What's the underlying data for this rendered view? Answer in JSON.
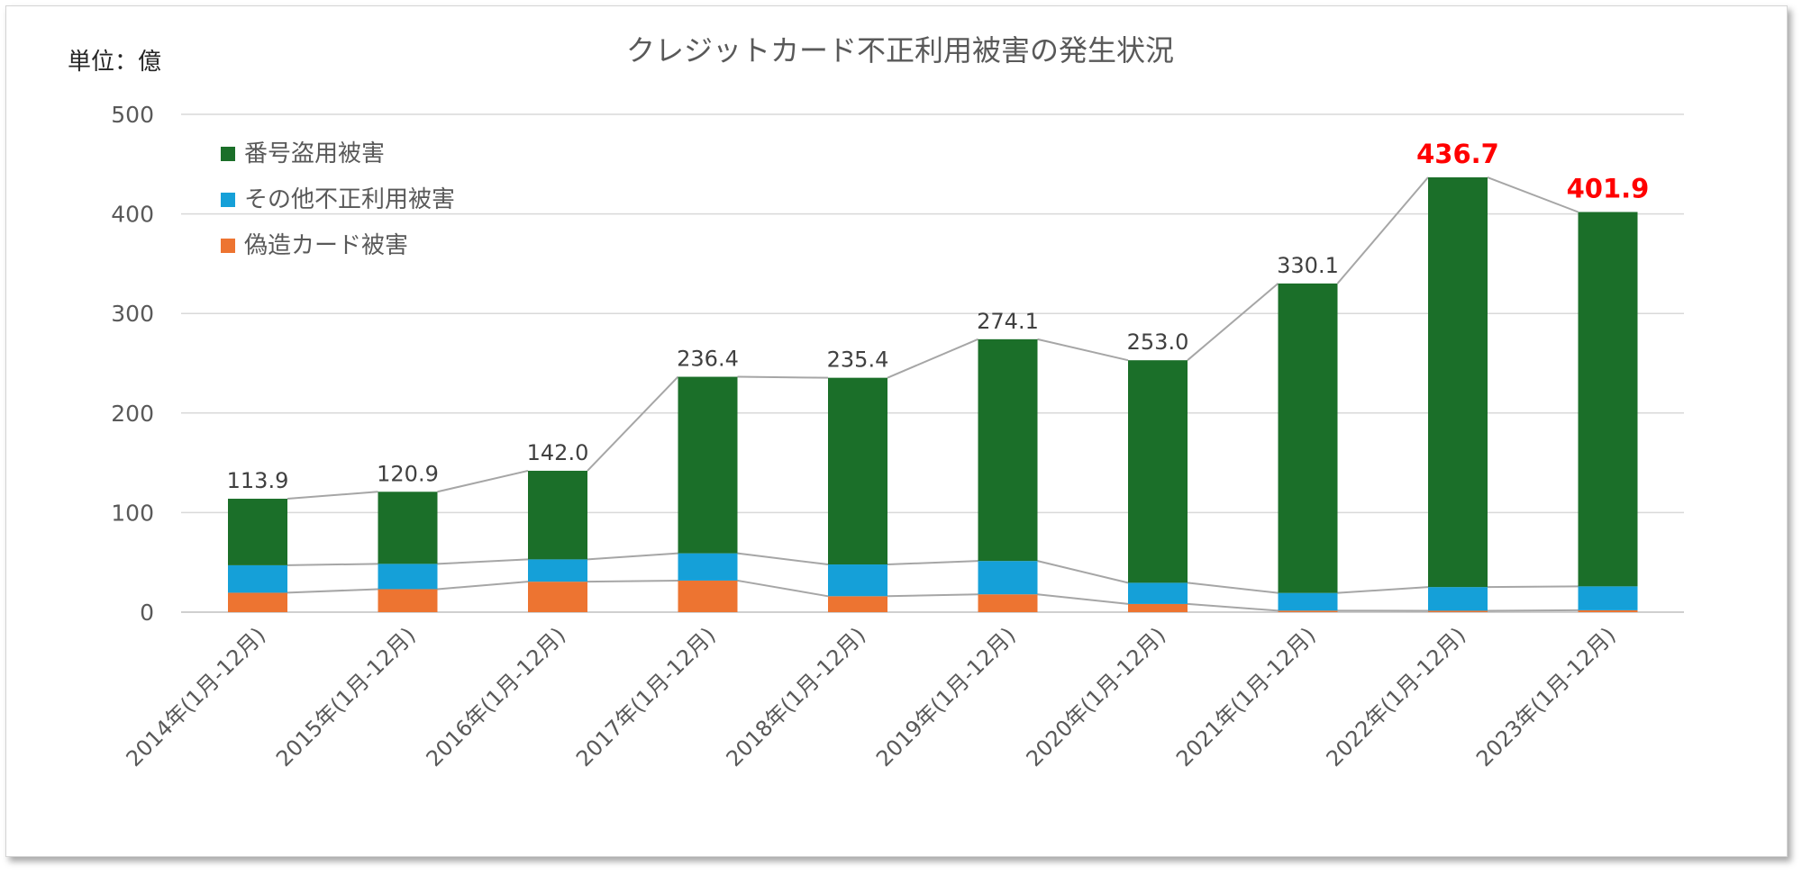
{
  "chart_data": {
    "type": "bar",
    "stacked": true,
    "title": "クレジットカード不正利用被害の発生状況",
    "unit_label": "単位：億",
    "categories": [
      "2014年(1月-12月)",
      "2015年(1月-12月)",
      "2016年(1月-12月)",
      "2017年(1月-12月)",
      "2018年(1月-12月)",
      "2019年(1月-12月)",
      "2020年(1月-12月)",
      "2021年(1月-12月)",
      "2022年(1月-12月)",
      "2023年(1月-12月)"
    ],
    "series": [
      {
        "name": "偽造カード被害",
        "color": "#ed7431",
        "values": [
          19.5,
          23.1,
          30.6,
          31.7,
          16.0,
          17.9,
          8.2,
          1.5,
          1.4,
          1.9
        ]
      },
      {
        "name": "その他不正利用被害",
        "color": "#15a0d8",
        "values": [
          27.6,
          25.4,
          22.4,
          27.4,
          31.9,
          33.5,
          21.3,
          17.8,
          23.8,
          24.0
        ]
      },
      {
        "name": "番号盗用被害",
        "color": "#1b6f29",
        "values": [
          66.8,
          72.4,
          89.0,
          177.3,
          187.5,
          222.7,
          223.5,
          310.8,
          411.5,
          376.0
        ]
      }
    ],
    "totals": [
      "113.9",
      "120.9",
      "142.0",
      "236.4",
      "235.4",
      "274.1",
      "253.0",
      "330.1",
      "436.7",
      "401.9"
    ],
    "highlighted_totals": [
      8,
      9
    ],
    "highlight_color": "#ff0000",
    "yticks": [
      "0",
      "100",
      "200",
      "300",
      "400",
      "500"
    ],
    "ylim": [
      0,
      500
    ],
    "grid": true,
    "legend_position": "top-left",
    "connector_lines": true
  }
}
